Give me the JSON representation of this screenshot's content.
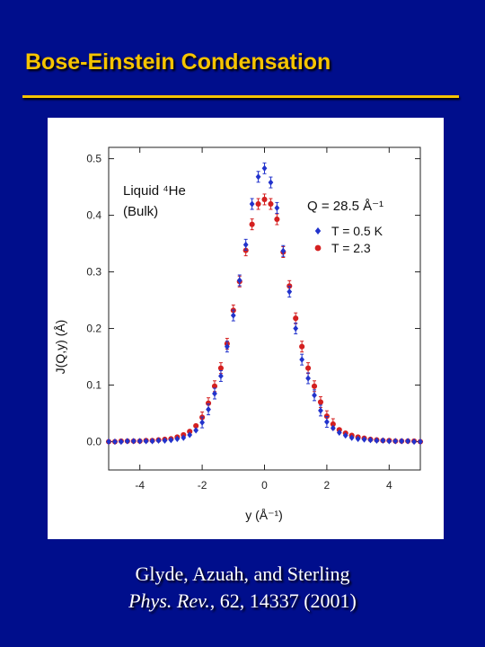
{
  "slide": {
    "title": "Bose-Einstein Condensation",
    "citation_line1": "Glyde, Azuah, and Sterling",
    "citation_journal": "Phys. Rev.",
    "citation_rest": ", 62, 14337 (2001)"
  },
  "colors": {
    "background": "#000e8c",
    "title": "#f6c400",
    "series_cold": "#2233cc",
    "series_warm": "#d42020"
  },
  "chart_data": {
    "type": "scatter",
    "xlabel": "y (Å⁻¹)",
    "ylabel": "J(Q,y) (Å)",
    "xlim": [
      -5,
      5
    ],
    "ylim": [
      -0.05,
      0.52
    ],
    "x_ticks": [
      -4,
      -2,
      0,
      2,
      4
    ],
    "y_ticks": [
      0.0,
      0.1,
      0.2,
      0.3,
      0.4,
      0.5
    ],
    "x_tick_labels": [
      "-4",
      "-2",
      "0",
      "2",
      "4"
    ],
    "y_tick_labels": [
      "0.0",
      "0.1",
      "0.2",
      "0.3",
      "0.4",
      "0.5"
    ],
    "annotation_line1": "Liquid ⁴He",
    "annotation_line2": "(Bulk)",
    "q_label": "Q = 28.5 Å⁻¹",
    "legend_position": "top-right",
    "series": [
      {
        "name": "T = 0.5 K",
        "color": "#2233cc",
        "marker": "diamond",
        "x": [
          -5,
          -4.8,
          -4.6,
          -4.4,
          -4.2,
          -4,
          -3.8,
          -3.6,
          -3.4,
          -3.2,
          -3,
          -2.8,
          -2.6,
          -2.4,
          -2.2,
          -2,
          -1.8,
          -1.6,
          -1.4,
          -1.2,
          -1,
          -0.8,
          -0.6,
          -0.4,
          -0.2,
          0,
          0.2,
          0.4,
          0.6,
          0.8,
          1,
          1.2,
          1.4,
          1.6,
          1.8,
          2,
          2.2,
          2.4,
          2.6,
          2.8,
          3,
          3.2,
          3.4,
          3.6,
          3.8,
          4,
          4.2,
          4.4,
          4.6,
          4.8,
          5
        ],
        "y": [
          0.0,
          0.0,
          0.0,
          0.001,
          0.001,
          0.001,
          0.001,
          0.001,
          0.002,
          0.002,
          0.003,
          0.005,
          0.007,
          0.012,
          0.02,
          0.034,
          0.057,
          0.085,
          0.116,
          0.168,
          0.223,
          0.285,
          0.348,
          0.42,
          0.468,
          0.483,
          0.458,
          0.413,
          0.337,
          0.265,
          0.2,
          0.145,
          0.112,
          0.082,
          0.055,
          0.035,
          0.024,
          0.016,
          0.011,
          0.007,
          0.005,
          0.004,
          0.003,
          0.002,
          0.002,
          0.001,
          0.001,
          0.001,
          0.001,
          0.0,
          0.0
        ]
      },
      {
        "name": "T = 2.3",
        "color": "#d42020",
        "marker": "circle",
        "x": [
          -5,
          -4.8,
          -4.6,
          -4.4,
          -4.2,
          -4,
          -3.8,
          -3.6,
          -3.4,
          -3.2,
          -3,
          -2.8,
          -2.6,
          -2.4,
          -2.2,
          -2,
          -1.8,
          -1.6,
          -1.4,
          -1.2,
          -1,
          -0.8,
          -0.6,
          -0.4,
          -0.2,
          0,
          0.2,
          0.4,
          0.6,
          0.8,
          1,
          1.2,
          1.4,
          1.6,
          1.8,
          2,
          2.2,
          2.4,
          2.6,
          2.8,
          3,
          3.2,
          3.4,
          3.6,
          3.8,
          4,
          4.2,
          4.4,
          4.6,
          4.8,
          5
        ],
        "y": [
          0.0,
          0.0,
          0.001,
          0.001,
          0.001,
          0.001,
          0.002,
          0.002,
          0.003,
          0.004,
          0.005,
          0.008,
          0.012,
          0.018,
          0.028,
          0.043,
          0.068,
          0.098,
          0.13,
          0.173,
          0.232,
          0.283,
          0.338,
          0.384,
          0.42,
          0.428,
          0.42,
          0.393,
          0.335,
          0.275,
          0.218,
          0.168,
          0.13,
          0.098,
          0.07,
          0.045,
          0.031,
          0.021,
          0.015,
          0.011,
          0.008,
          0.006,
          0.004,
          0.003,
          0.002,
          0.002,
          0.001,
          0.001,
          0.001,
          0.001,
          0.0
        ]
      }
    ]
  }
}
